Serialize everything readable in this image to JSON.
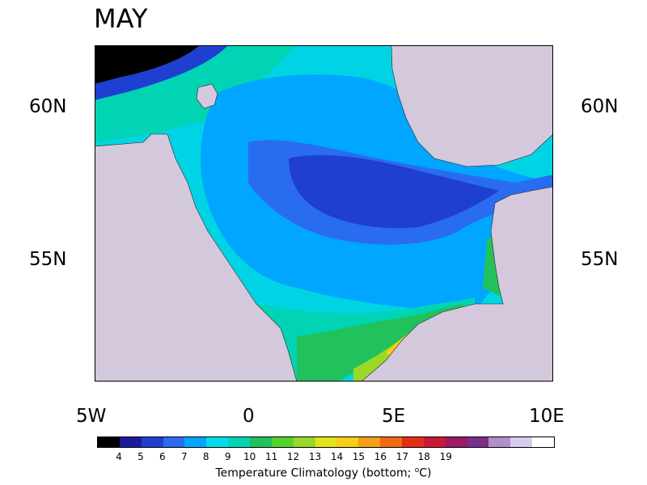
{
  "title": "MAY",
  "axes": {
    "lat_labels": [
      "60N",
      "55N"
    ],
    "lon_labels": [
      "5W",
      "0",
      "5E",
      "10E"
    ]
  },
  "colorbar": {
    "tick_labels": [
      "4",
      "5",
      "6",
      "7",
      "8",
      "9",
      "10",
      "11",
      "12",
      "13",
      "14",
      "15",
      "16",
      "17",
      "18",
      "19"
    ],
    "title_main": "Temperature Climatology (bottom; ",
    "title_sup": "o",
    "title_end": "C)",
    "colors": [
      "#000000",
      "#1a1a9e",
      "#1f3fd0",
      "#2a6cf0",
      "#00a6ff",
      "#00dcec",
      "#00d4b4",
      "#21c25c",
      "#55d22c",
      "#9ad82a",
      "#e2e41a",
      "#f6ce15",
      "#f2a014",
      "#f06a14",
      "#e23018",
      "#c81a36",
      "#9a1a66",
      "#7a2e8a",
      "#b090c8",
      "#d8ccec",
      "#ffffff"
    ]
  },
  "colors": {
    "land": "#d4c8dc",
    "coast": "#222222"
  }
}
